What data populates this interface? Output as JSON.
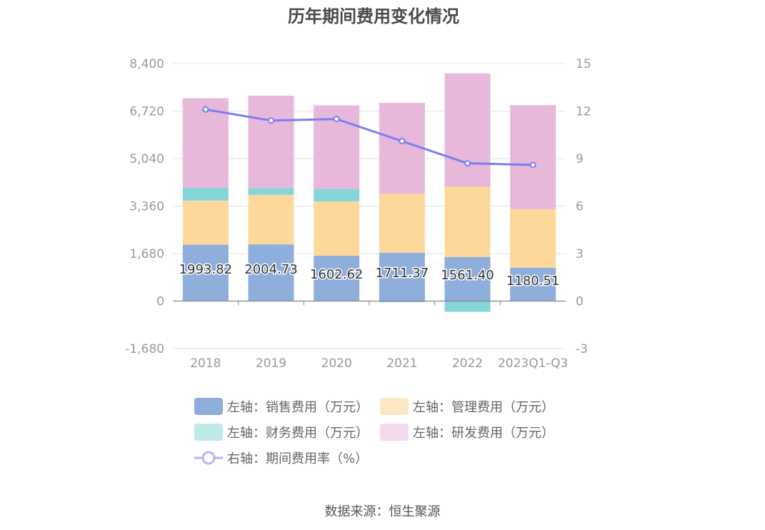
{
  "chart_data": {
    "type": "bar",
    "stacked": true,
    "title": "历年期间费用变化情况",
    "categories": [
      "2018",
      "2019",
      "2020",
      "2021",
      "2022",
      "2023Q1-Q3"
    ],
    "left_axis": {
      "ticks": [
        "8,400",
        "6,720",
        "5,040",
        "3,360",
        "1,680",
        "0",
        "-1,680"
      ],
      "ylim": [
        -1680,
        8400
      ]
    },
    "right_axis": {
      "ticks": [
        "15",
        "12",
        "9",
        "6",
        "3",
        "0",
        "-3"
      ],
      "ylim": [
        -3,
        15
      ]
    },
    "series": [
      {
        "name": "左轴：销售费用（万元）",
        "color": "#8eaedc",
        "values": [
          1993.82,
          2004.73,
          1602.62,
          1711.37,
          1561.4,
          1180.51
        ],
        "labels": [
          "1993.82",
          "2004.73",
          "1602.62",
          "1711.37",
          "1561.40",
          "1180.51"
        ]
      },
      {
        "name": "左轴：管理费用（万元）",
        "color": "#fed89a",
        "values": [
          1560,
          1750,
          1920,
          2080,
          2480,
          2070
        ]
      },
      {
        "name": "左轴：财务费用（万元）",
        "color": "#86d5d9",
        "values": [
          450,
          240,
          440,
          -40,
          -380,
          -10
        ]
      },
      {
        "name": "左轴：研发费用（万元）",
        "color": "#e7b8da",
        "values": [
          3170,
          3270,
          2960,
          3220,
          4010,
          3680
        ]
      },
      {
        "name": "右轴：期间费用率（%）",
        "type": "line",
        "color": "#7b7ff0",
        "axis": "right",
        "values": [
          12.1,
          11.4,
          11.5,
          10.1,
          8.7,
          8.6
        ]
      }
    ]
  },
  "legend": [
    {
      "label": "左轴：销售费用（万元）",
      "color": "#8eaedc"
    },
    {
      "label": "左轴：管理费用（万元）",
      "color": "#fde8c6"
    },
    {
      "label": "左轴：财务费用（万元）",
      "color": "#bfe8e9"
    },
    {
      "label": "左轴：研发费用（万元）",
      "color": "#f2d9ec"
    },
    {
      "label": "右轴：期间费用率（%）",
      "color": "#b3b6f5"
    }
  ],
  "source": "数据来源：恒生聚源"
}
